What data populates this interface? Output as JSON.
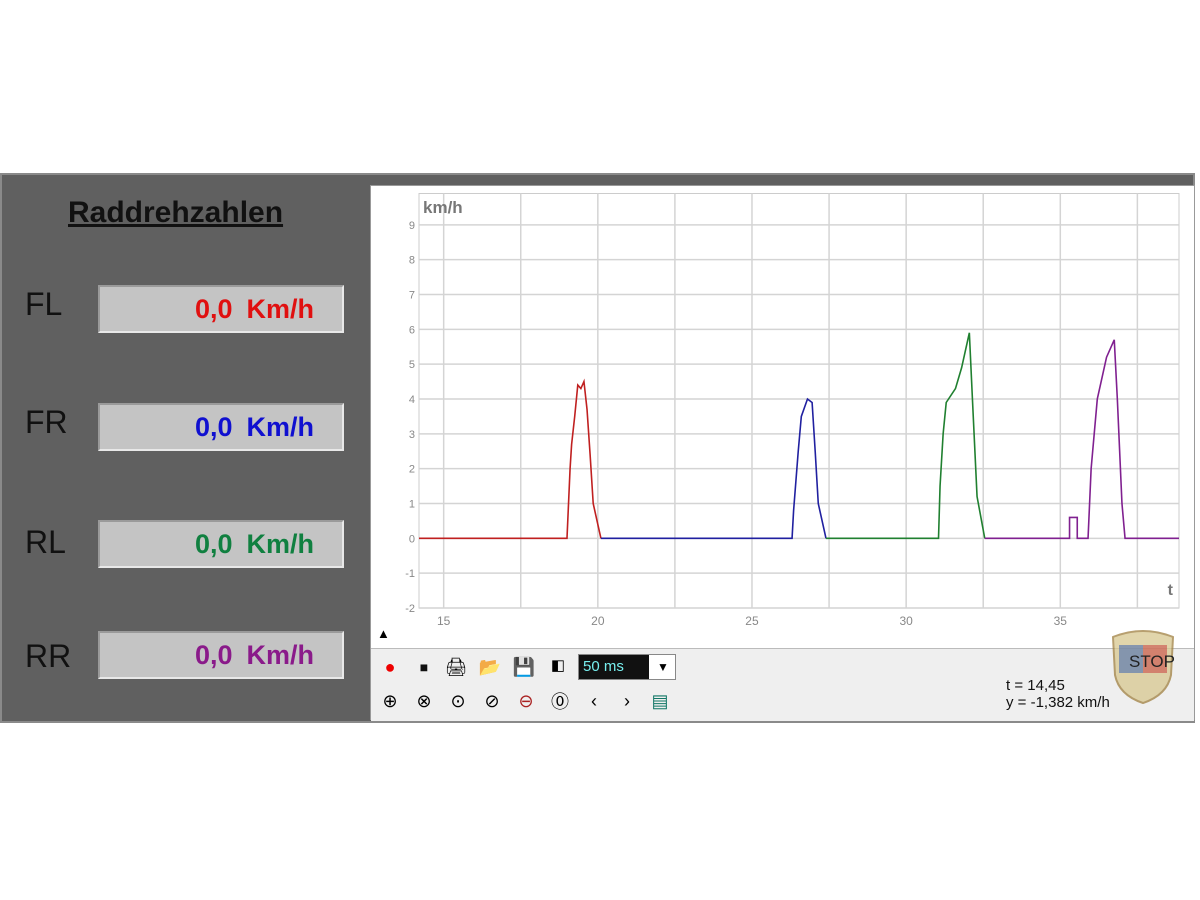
{
  "panel": {
    "title": "Raddrehzahlen",
    "wheels": [
      {
        "label": "FL",
        "value": "0,0",
        "unit": "Km/h",
        "color": "#e01010"
      },
      {
        "label": "FR",
        "value": "0,0",
        "unit": "Km/h",
        "color": "#1010d0"
      },
      {
        "label": "RL",
        "value": "0,0",
        "unit": "Km/h",
        "color": "#108040"
      },
      {
        "label": "RR",
        "value": "0,0",
        "unit": "Km/h",
        "color": "#8a1a8a"
      }
    ]
  },
  "toolbar": {
    "sample_rate": "50 ms",
    "readout_t": "t = 14,45",
    "readout_y": "y = -1,382 km/h",
    "icons": [
      "record-icon",
      "stop-icon",
      "print-icon",
      "open-folder-icon",
      "save-icon",
      "copy-image-icon",
      "zoom-y-icon",
      "zoom-x-icon",
      "zoom-in-x-icon",
      "zoom-out-x-icon",
      "zoom-fit-icon",
      "zoom-reset-icon",
      "scroll-left-icon",
      "scroll-right-icon",
      "export-icon"
    ],
    "logo_text": "STOP"
  },
  "chart_data": {
    "type": "line",
    "xlabel": "t",
    "ylabel": "km/h",
    "xlim": [
      14.2,
      38.85
    ],
    "ylim": [
      -2,
      9.9
    ],
    "xticks": [
      15,
      20,
      25,
      30,
      35
    ],
    "yticks": [
      -2,
      -1,
      0,
      1,
      2,
      3,
      4,
      5,
      6,
      7,
      8,
      9
    ],
    "x_grid_step": 2.5,
    "grid": true,
    "series": [
      {
        "color": "#c02020",
        "points": [
          [
            14.2,
            0
          ],
          [
            19.0,
            0
          ],
          [
            19.05,
            1
          ],
          [
            19.1,
            2
          ],
          [
            19.15,
            2.7
          ],
          [
            19.25,
            3.5
          ],
          [
            19.35,
            4.4
          ],
          [
            19.45,
            4.3
          ],
          [
            19.55,
            4.5
          ],
          [
            19.65,
            3.7
          ],
          [
            19.75,
            2.4
          ],
          [
            19.85,
            1.0
          ],
          [
            19.95,
            0.6
          ],
          [
            20.1,
            0
          ]
        ]
      },
      {
        "color": "#2020a0",
        "points": [
          [
            20.1,
            0
          ],
          [
            26.3,
            0
          ],
          [
            26.35,
            0.8
          ],
          [
            26.5,
            2.5
          ],
          [
            26.6,
            3.5
          ],
          [
            26.8,
            4.0
          ],
          [
            26.95,
            3.9
          ],
          [
            27.05,
            2.5
          ],
          [
            27.15,
            1.0
          ],
          [
            27.4,
            0
          ]
        ]
      },
      {
        "color": "#208030",
        "points": [
          [
            27.4,
            0
          ],
          [
            31.05,
            0
          ],
          [
            31.1,
            1.5
          ],
          [
            31.2,
            3.0
          ],
          [
            31.3,
            3.9
          ],
          [
            31.6,
            4.3
          ],
          [
            31.8,
            4.9
          ],
          [
            32.05,
            5.9
          ],
          [
            32.15,
            4.0
          ],
          [
            32.3,
            1.2
          ],
          [
            32.55,
            0
          ]
        ]
      },
      {
        "color": "#802090",
        "points": [
          [
            32.55,
            0
          ],
          [
            35.3,
            0
          ],
          [
            35.3,
            0.6
          ],
          [
            35.55,
            0.6
          ],
          [
            35.55,
            0
          ],
          [
            35.9,
            0
          ],
          [
            36.0,
            2.0
          ],
          [
            36.2,
            4.0
          ],
          [
            36.5,
            5.2
          ],
          [
            36.75,
            5.7
          ],
          [
            36.85,
            4.0
          ],
          [
            37.0,
            1.0
          ],
          [
            37.1,
            0
          ],
          [
            38.85,
            0
          ]
        ]
      }
    ]
  }
}
